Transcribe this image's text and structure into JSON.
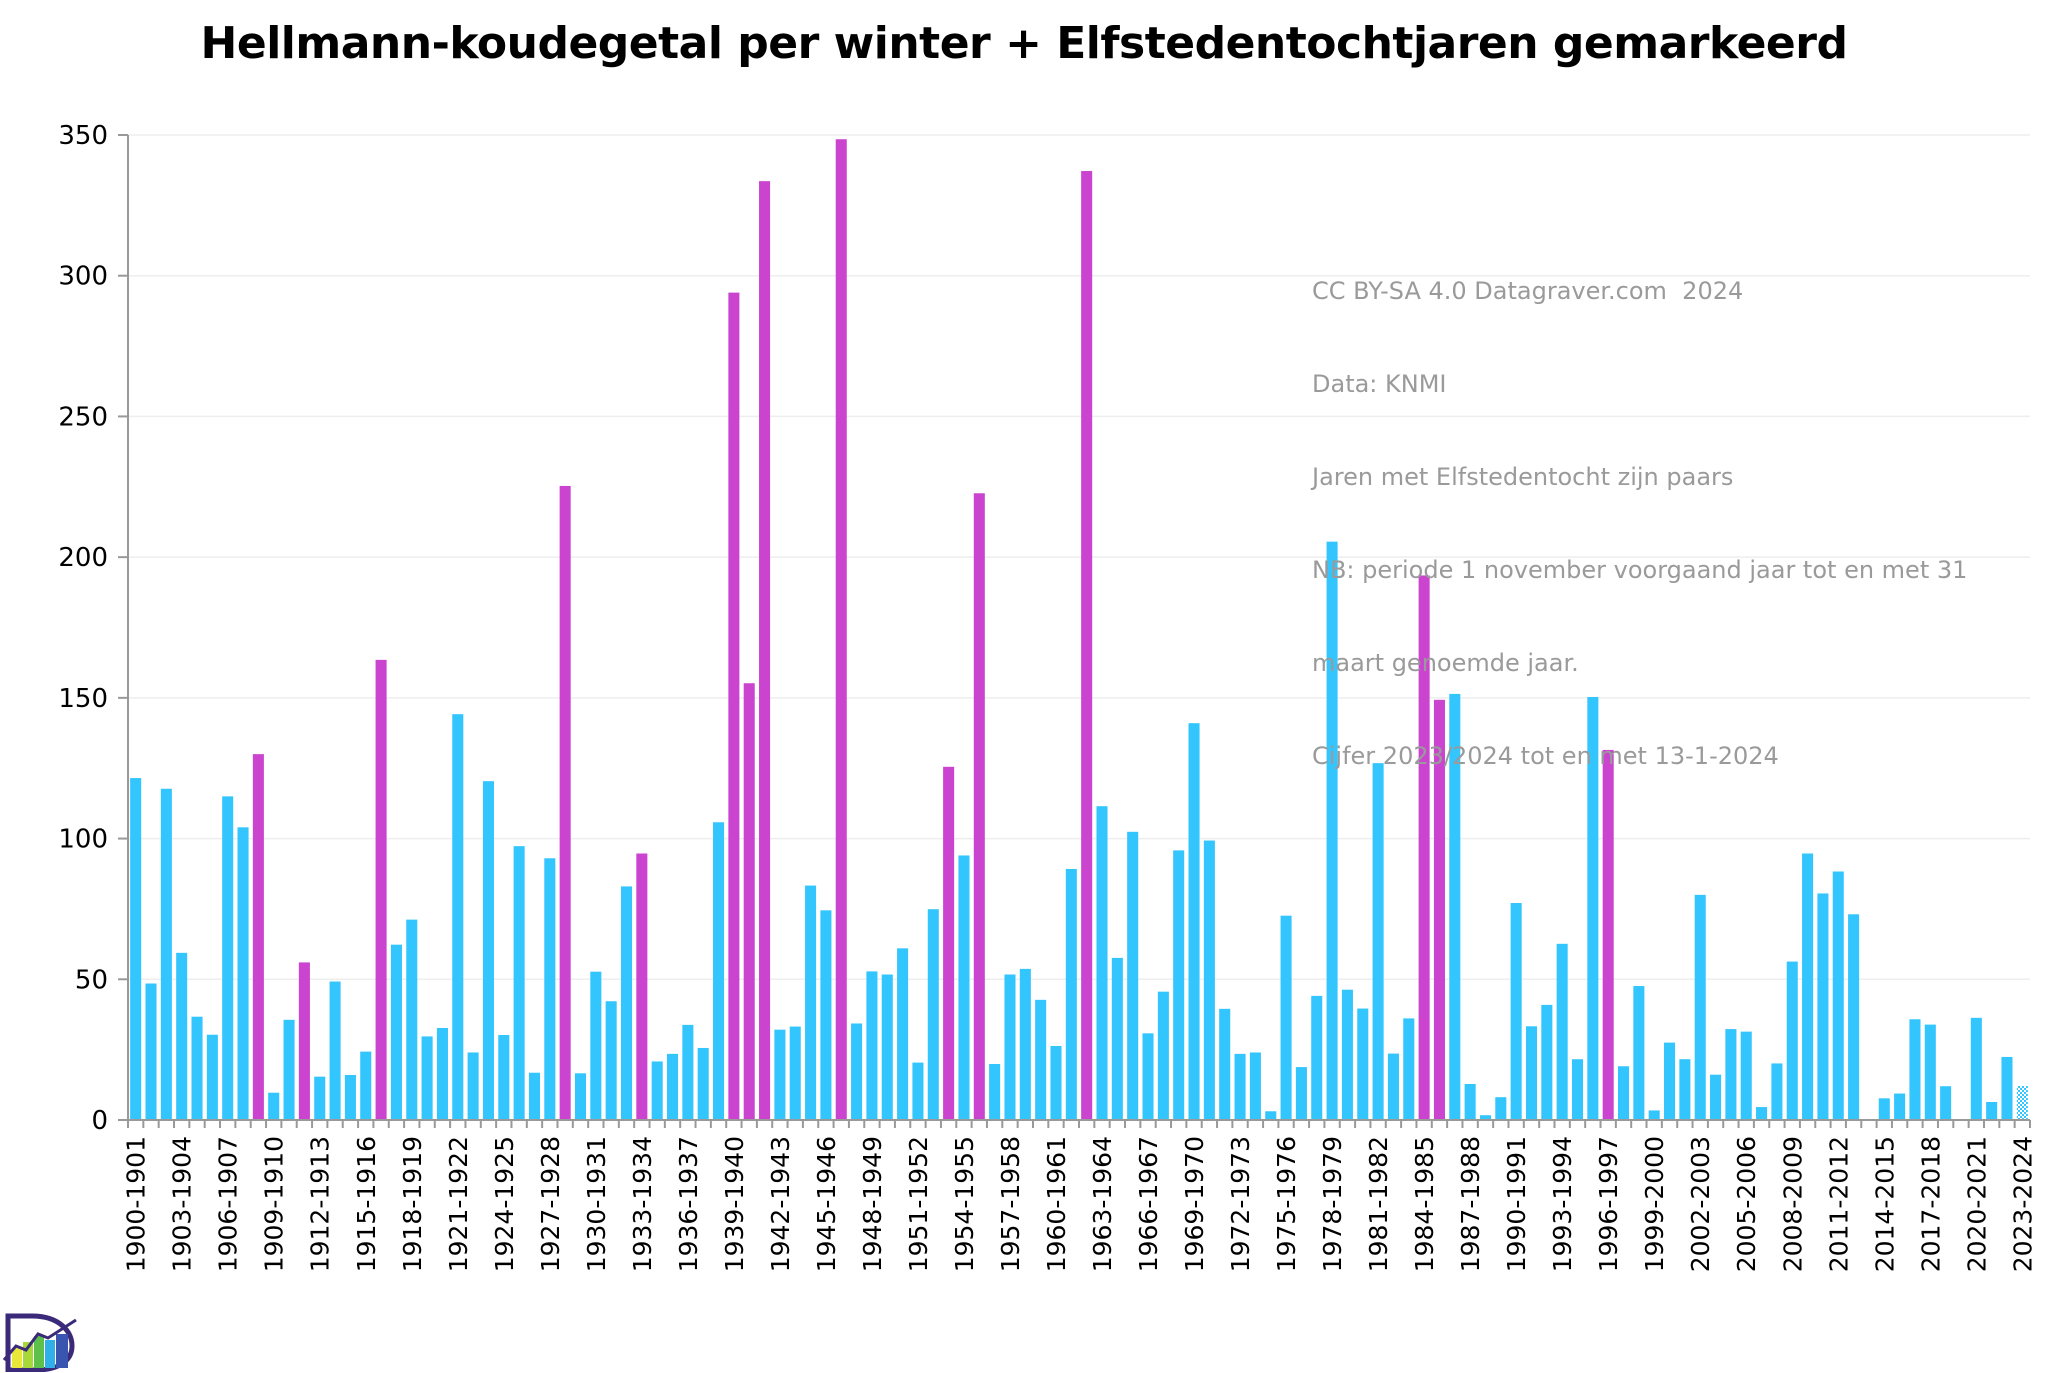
{
  "chart_data": {
    "type": "bar",
    "title": "Hellmann-koudegetal per winter + Elfstedentochtjaren gemarkeerd",
    "xlabel": "",
    "ylabel": "",
    "ylim": [
      0,
      350
    ],
    "yticks": [
      0,
      50,
      100,
      150,
      200,
      250,
      300,
      350
    ],
    "grid": true,
    "legend": "none",
    "label_every": 3,
    "colors": {
      "normal": "#33c5fd",
      "elfstedentocht": "#cb44d0",
      "provisional": "#33c5fd"
    },
    "categories": [
      "1900-1901",
      "1901-1902",
      "1902-1903",
      "1903-1904",
      "1904-1905",
      "1905-1906",
      "1906-1907",
      "1907-1908",
      "1908-1909",
      "1909-1910",
      "1910-1911",
      "1911-1912",
      "1912-1913",
      "1913-1914",
      "1914-1915",
      "1915-1916",
      "1916-1917",
      "1917-1918",
      "1918-1919",
      "1919-1920",
      "1920-1921",
      "1921-1922",
      "1922-1923",
      "1923-1924",
      "1924-1925",
      "1925-1926",
      "1926-1927",
      "1927-1928",
      "1928-1929",
      "1929-1930",
      "1930-1931",
      "1931-1932",
      "1932-1933",
      "1933-1934",
      "1934-1935",
      "1935-1936",
      "1936-1937",
      "1937-1938",
      "1938-1939",
      "1939-1940",
      "1940-1941",
      "1941-1942",
      "1942-1943",
      "1943-1944",
      "1944-1945",
      "1945-1946",
      "1946-1947",
      "1947-1948",
      "1948-1949",
      "1949-1950",
      "1950-1951",
      "1951-1952",
      "1952-1953",
      "1953-1954",
      "1954-1955",
      "1955-1956",
      "1956-1957",
      "1957-1958",
      "1958-1959",
      "1959-1960",
      "1960-1961",
      "1961-1962",
      "1962-1963",
      "1963-1964",
      "1964-1965",
      "1965-1966",
      "1966-1967",
      "1967-1968",
      "1968-1969",
      "1969-1970",
      "1970-1971",
      "1971-1972",
      "1972-1973",
      "1973-1974",
      "1974-1975",
      "1975-1976",
      "1976-1977",
      "1977-1978",
      "1978-1979",
      "1979-1980",
      "1980-1981",
      "1981-1982",
      "1982-1983",
      "1983-1984",
      "1984-1985",
      "1985-1986",
      "1986-1987",
      "1987-1988",
      "1988-1989",
      "1989-1990",
      "1990-1991",
      "1991-1992",
      "1992-1993",
      "1993-1994",
      "1994-1995",
      "1995-1996",
      "1996-1997",
      "1997-1998",
      "1998-1999",
      "1999-2000",
      "2000-2001",
      "2001-2002",
      "2002-2003",
      "2003-2004",
      "2004-2005",
      "2005-2006",
      "2006-2007",
      "2007-2008",
      "2008-2009",
      "2009-2010",
      "2010-2011",
      "2011-2012",
      "2012-2013",
      "2013-2014",
      "2014-2015",
      "2015-2016",
      "2016-2017",
      "2017-2018",
      "2018-2019",
      "2019-2020",
      "2020-2021",
      "2021-2022",
      "2022-2023",
      "2023-2024"
    ],
    "values": [
      121.5,
      48.5,
      117.7,
      59.4,
      36.7,
      30.3,
      115,
      104,
      130,
      9.7,
      35.6,
      56,
      15.4,
      49.2,
      16,
      24.3,
      163.5,
      62.3,
      71.2,
      29.7,
      32.7,
      144.2,
      24,
      120.4,
      30.2,
      97.3,
      16.8,
      93,
      225.3,
      16.6,
      52.7,
      42.2,
      83,
      94.7,
      20.8,
      23.5,
      33.8,
      25.6,
      105.8,
      294,
      155.2,
      333.6,
      32.1,
      33.2,
      83.3,
      74.5,
      348.5,
      34.3,
      52.8,
      51.7,
      61,
      20.4,
      74.9,
      125.5,
      94,
      222.7,
      19.9,
      51.7,
      53.7,
      42.7,
      26.3,
      89.2,
      337.2,
      111.5,
      57.6,
      102.4,
      30.8,
      45.6,
      95.8,
      141,
      99.3,
      39.5,
      23.5,
      24,
      3.1,
      72.6,
      18.8,
      44.1,
      205.5,
      46.3,
      39.6,
      126.8,
      23.6,
      36.1,
      193.5,
      149.3,
      151.4,
      12.8,
      1.7,
      8.1,
      77.1,
      33.3,
      40.9,
      62.6,
      21.6,
      150.3,
      131.5,
      19.1,
      47.6,
      3.4,
      27.5,
      21.6,
      80,
      16.1,
      32.3,
      31.4,
      4.6,
      20.1,
      56.3,
      94.7,
      80.5,
      88.3,
      73.1,
      0,
      7.7,
      9.4,
      35.8,
      33.9,
      12,
      0,
      36.3,
      6.4,
      22.4,
      12.1
    ],
    "elfstedentocht_years": [
      "1908-1909",
      "1911-1912",
      "1916-1917",
      "1928-1929",
      "1933-1934",
      "1939-1940",
      "1940-1941",
      "1941-1942",
      "1946-1947",
      "1953-1954",
      "1955-1956",
      "1962-1963",
      "1984-1985",
      "1985-1986",
      "1996-1997"
    ],
    "provisional": [
      "2023-2024"
    ],
    "annotations": [
      "CC BY-SA 4.0 Datagraver.com  2024",
      "Data: KNMI",
      "Jaren met Elfstedentocht zijn paars",
      "NB: periode 1 november voorgaand jaar tot en met 31",
      "maart genoemde jaar.",
      "Cijfer 2023/2024 tot en met 13-1-2024"
    ]
  },
  "logo": {
    "name": "Datagraver"
  }
}
